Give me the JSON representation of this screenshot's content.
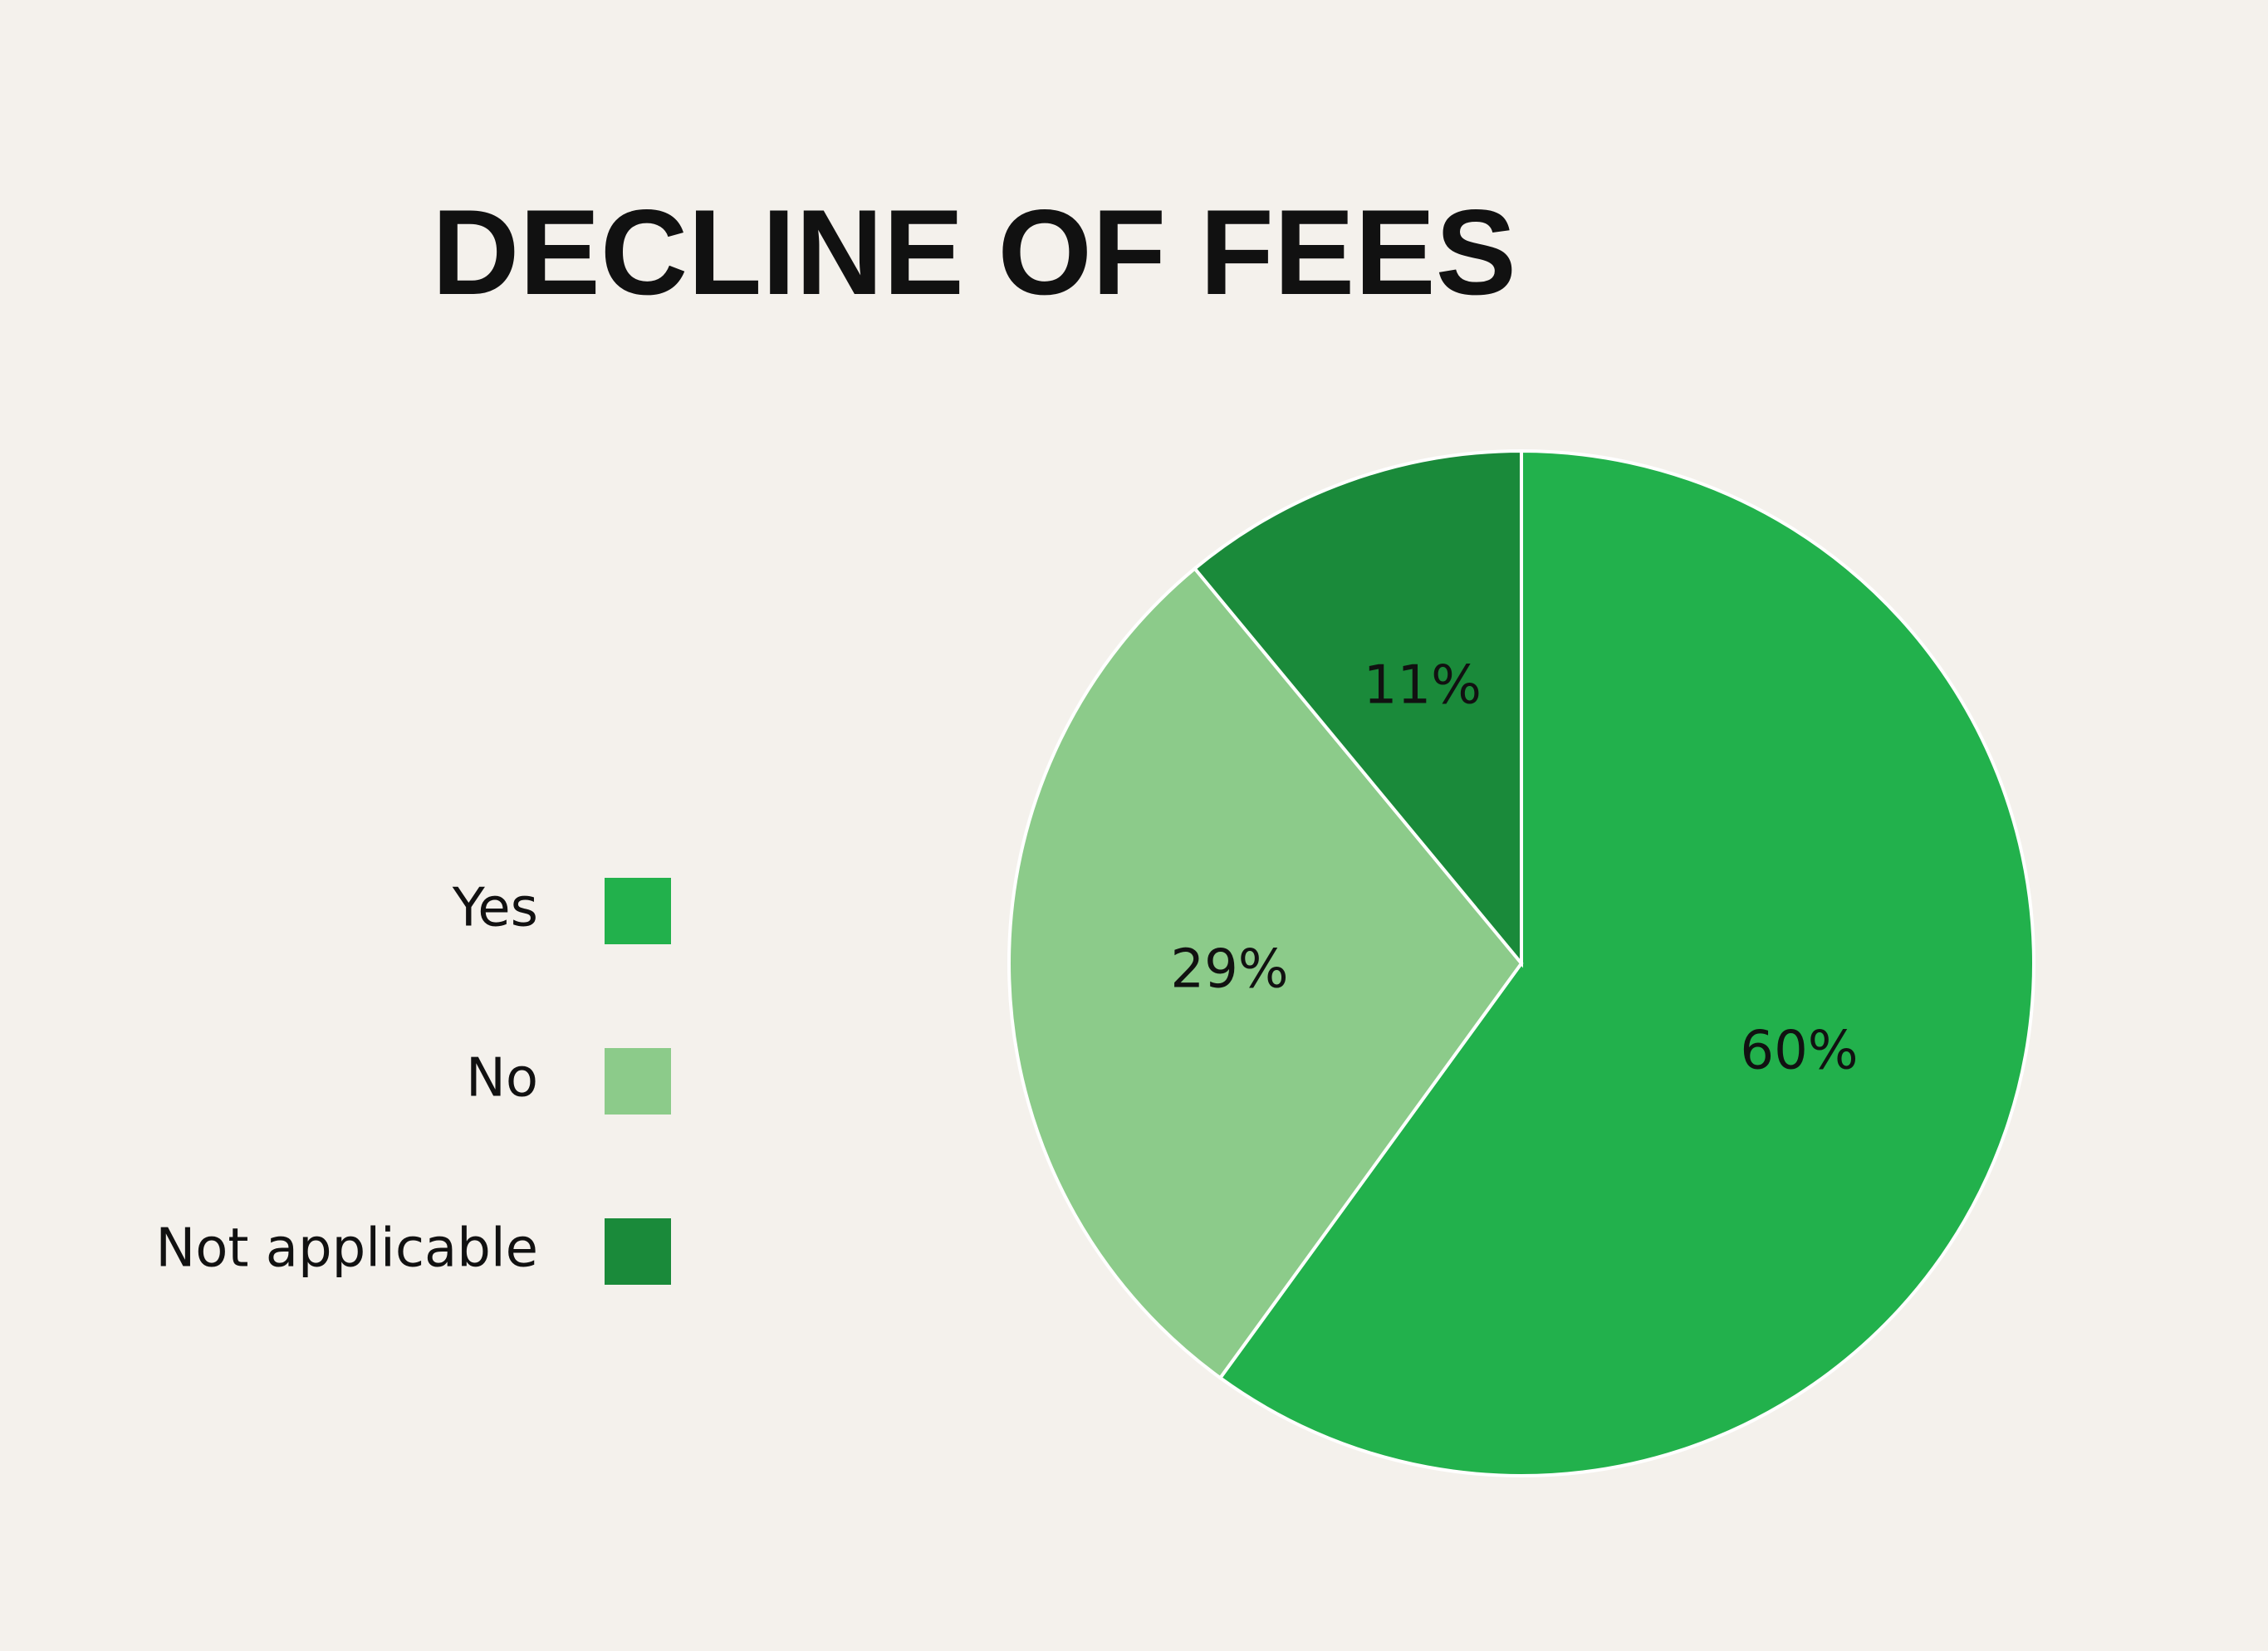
{
  "chart_data": {
    "type": "pie",
    "title": "DECLINE OF FEES",
    "categories": [
      "Yes",
      "No",
      "Not applicable"
    ],
    "values": [
      60,
      29,
      11
    ],
    "value_labels": [
      "60%",
      "29%",
      "11%"
    ],
    "colors": [
      "#22b14c",
      "#8ccb8a",
      "#1a8a3a"
    ],
    "legend": "left"
  }
}
